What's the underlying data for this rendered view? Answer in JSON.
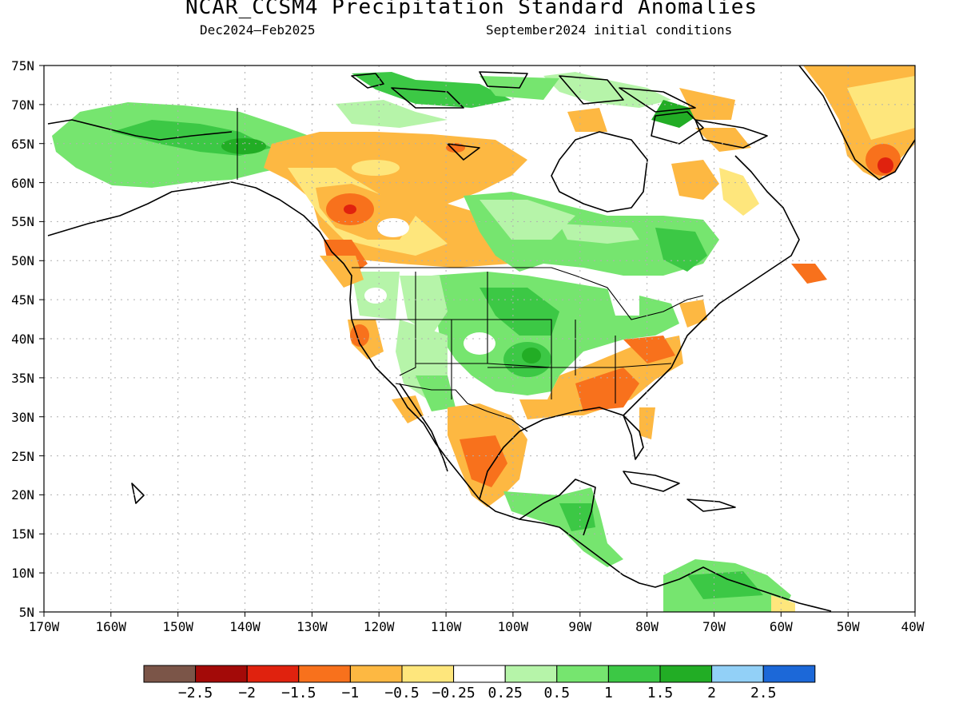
{
  "header": {
    "title": "NCAR_CCSM4 Precipitation Standard Anomalies",
    "period": "Dec2024—Feb2025",
    "initial_conditions": "September2024 initial conditions"
  },
  "axes": {
    "lat_labels": [
      "75N",
      "70N",
      "65N",
      "60N",
      "55N",
      "50N",
      "45N",
      "40N",
      "35N",
      "30N",
      "25N",
      "20N",
      "15N",
      "10N",
      "5N"
    ],
    "lon_labels": [
      "170W",
      "160W",
      "150W",
      "140W",
      "130W",
      "120W",
      "110W",
      "100W",
      "90W",
      "80W",
      "70W",
      "60W",
      "50W",
      "40W"
    ],
    "lat_range": [
      5,
      75
    ],
    "lon_range": [
      -170,
      -40
    ]
  },
  "colorbar": {
    "labels": [
      "−2.5",
      "−2",
      "−1.5",
      "−1",
      "−0.5",
      "−0.25",
      "0.25",
      "0.5",
      "1",
      "1.5",
      "2",
      "2.5"
    ],
    "colors": [
      "#7b5548",
      "#a30a08",
      "#e0220e",
      "#f8711c",
      "#fdb842",
      "#fee67c",
      "#ffffff",
      "#b6f4a9",
      "#76e56f",
      "#3cc845",
      "#22ad25",
      "#92d0f7",
      "#1c68d8"
    ]
  },
  "colors": {
    "dry_moderate": "#fdb842",
    "dry_light": "#fee67c",
    "dry_strong": "#f8711c",
    "wet_light": "#b6f4a9",
    "wet_moderate": "#76e56f",
    "wet_strong": "#3cc845"
  }
}
